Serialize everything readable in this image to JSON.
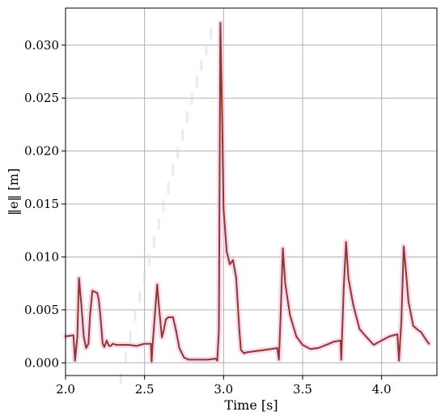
{
  "chart_data": {
    "type": "line",
    "xlabel": "Time [s]",
    "ylabel": "‖e‖ [m]",
    "xlim": [
      2.0,
      4.35
    ],
    "ylim": [
      -0.0012,
      0.0335
    ],
    "xticks": [
      2.0,
      2.5,
      3.0,
      3.5,
      4.0
    ],
    "xtick_labels": [
      "2.0",
      "2.5",
      "3.0",
      "3.5",
      "4.0"
    ],
    "yticks": [
      0.0,
      0.005,
      0.01,
      0.015,
      0.02,
      0.025,
      0.03
    ],
    "ytick_labels": [
      "0.000",
      "0.005",
      "0.010",
      "0.015",
      "0.020",
      "0.025",
      "0.030"
    ],
    "grid": true,
    "series_color": "#8b3a2e",
    "glow_color": "#f6c9e6",
    "series": [
      {
        "x": [
          2.0,
          2.05,
          2.06,
          2.075,
          2.085,
          2.1,
          2.115,
          2.13,
          2.145,
          2.155,
          2.17,
          2.2,
          2.21,
          2.22,
          2.235,
          2.245,
          2.26,
          2.275,
          2.285,
          2.3,
          2.32,
          2.35,
          2.4,
          2.45,
          2.5,
          2.54,
          2.545,
          2.55,
          2.565,
          2.58,
          2.59,
          2.61,
          2.62,
          2.635,
          2.65,
          2.68,
          2.7,
          2.72,
          2.75,
          2.78,
          2.8,
          2.85,
          2.9,
          2.95,
          2.96,
          2.97,
          2.98,
          2.99,
          3.0,
          3.02,
          3.04,
          3.06,
          3.08,
          3.1,
          3.11,
          3.13,
          3.15,
          3.2,
          3.25,
          3.3,
          3.34,
          3.35,
          3.36,
          3.375,
          3.39,
          3.42,
          3.46,
          3.5,
          3.55,
          3.6,
          3.65,
          3.7,
          3.74,
          3.745,
          3.76,
          3.775,
          3.79,
          3.82,
          3.86,
          3.9,
          3.95,
          4.0,
          4.05,
          4.1,
          4.11,
          4.125,
          4.14,
          4.155,
          4.17,
          4.2,
          4.23,
          4.25,
          4.28,
          4.3
        ],
        "y": [
          0.0025,
          0.0026,
          0.0002,
          0.0025,
          0.008,
          0.0055,
          0.0025,
          0.0014,
          0.0018,
          0.0045,
          0.0068,
          0.0066,
          0.006,
          0.0045,
          0.0018,
          0.0015,
          0.0021,
          0.0016,
          0.0016,
          0.0018,
          0.0017,
          0.0017,
          0.0017,
          0.0016,
          0.0018,
          0.0018,
          0.0001,
          0.0015,
          0.0045,
          0.0074,
          0.0055,
          0.0024,
          0.003,
          0.0041,
          0.0043,
          0.0043,
          0.003,
          0.0014,
          0.0005,
          0.0003,
          0.0003,
          0.0003,
          0.0003,
          0.0004,
          0.0002,
          0.003,
          0.0321,
          0.024,
          0.0145,
          0.0105,
          0.0093,
          0.0097,
          0.008,
          0.003,
          0.0012,
          0.0009,
          0.001,
          0.0011,
          0.0012,
          0.0013,
          0.0014,
          0.0003,
          0.004,
          0.0108,
          0.0075,
          0.0045,
          0.0025,
          0.0017,
          0.0013,
          0.0014,
          0.0017,
          0.002,
          0.0021,
          0.0003,
          0.007,
          0.0114,
          0.008,
          0.0055,
          0.0032,
          0.0025,
          0.0017,
          0.0021,
          0.0025,
          0.0027,
          0.0002,
          0.004,
          0.011,
          0.0085,
          0.0058,
          0.0035,
          0.0031,
          0.0029,
          0.0022,
          0.0018
        ]
      }
    ],
    "ghost_dots": {
      "x": [
        2.35,
        2.38,
        2.41,
        2.44,
        2.47,
        2.5,
        2.53,
        2.56,
        2.59,
        2.62,
        2.65,
        2.68,
        2.71,
        2.74,
        2.77,
        2.8,
        2.83,
        2.86,
        2.89,
        2.92
      ],
      "y": [
        -0.0015,
        0.0005,
        0.0025,
        0.0045,
        0.0062,
        0.008,
        0.0097,
        0.0114,
        0.0131,
        0.0148,
        0.0165,
        0.0182,
        0.0198,
        0.0215,
        0.0232,
        0.0249,
        0.0265,
        0.0281,
        0.0296,
        0.0311
      ]
    }
  }
}
